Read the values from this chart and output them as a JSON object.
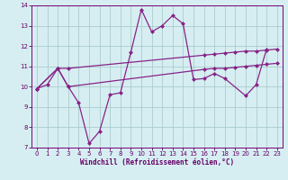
{
  "xlabel": "Windchill (Refroidissement éolien,°C)",
  "bg_color": "#d6eef2",
  "grid_color": "#aacccc",
  "line_color": "#882288",
  "xlim": [
    -0.5,
    23.5
  ],
  "ylim": [
    7,
    14
  ],
  "xticks": [
    0,
    1,
    2,
    3,
    4,
    5,
    6,
    7,
    8,
    9,
    10,
    11,
    12,
    13,
    14,
    15,
    16,
    17,
    18,
    19,
    20,
    21,
    22,
    23
  ],
  "yticks": [
    7,
    8,
    9,
    10,
    11,
    12,
    13,
    14
  ],
  "series": [
    {
      "x": [
        0,
        1,
        2,
        3,
        4,
        5,
        6,
        7,
        8,
        9,
        10,
        11,
        12,
        13,
        14,
        15,
        16,
        17,
        18,
        20,
        21,
        22
      ],
      "y": [
        9.9,
        10.1,
        10.9,
        10.0,
        9.2,
        7.2,
        7.8,
        9.6,
        9.7,
        11.7,
        13.8,
        12.7,
        13.0,
        13.5,
        13.1,
        10.35,
        10.4,
        10.65,
        10.4,
        9.55,
        10.1,
        11.85
      ]
    },
    {
      "x": [
        0,
        2,
        3,
        16,
        17,
        18,
        19,
        20,
        21,
        22,
        23
      ],
      "y": [
        9.9,
        10.9,
        10.9,
        11.55,
        11.6,
        11.65,
        11.7,
        11.75,
        11.75,
        11.8,
        11.85
      ]
    },
    {
      "x": [
        0,
        2,
        3,
        16,
        17,
        18,
        19,
        20,
        21,
        22,
        23
      ],
      "y": [
        9.9,
        10.9,
        10.0,
        10.85,
        10.9,
        10.9,
        10.95,
        11.0,
        11.05,
        11.1,
        11.15
      ]
    }
  ]
}
